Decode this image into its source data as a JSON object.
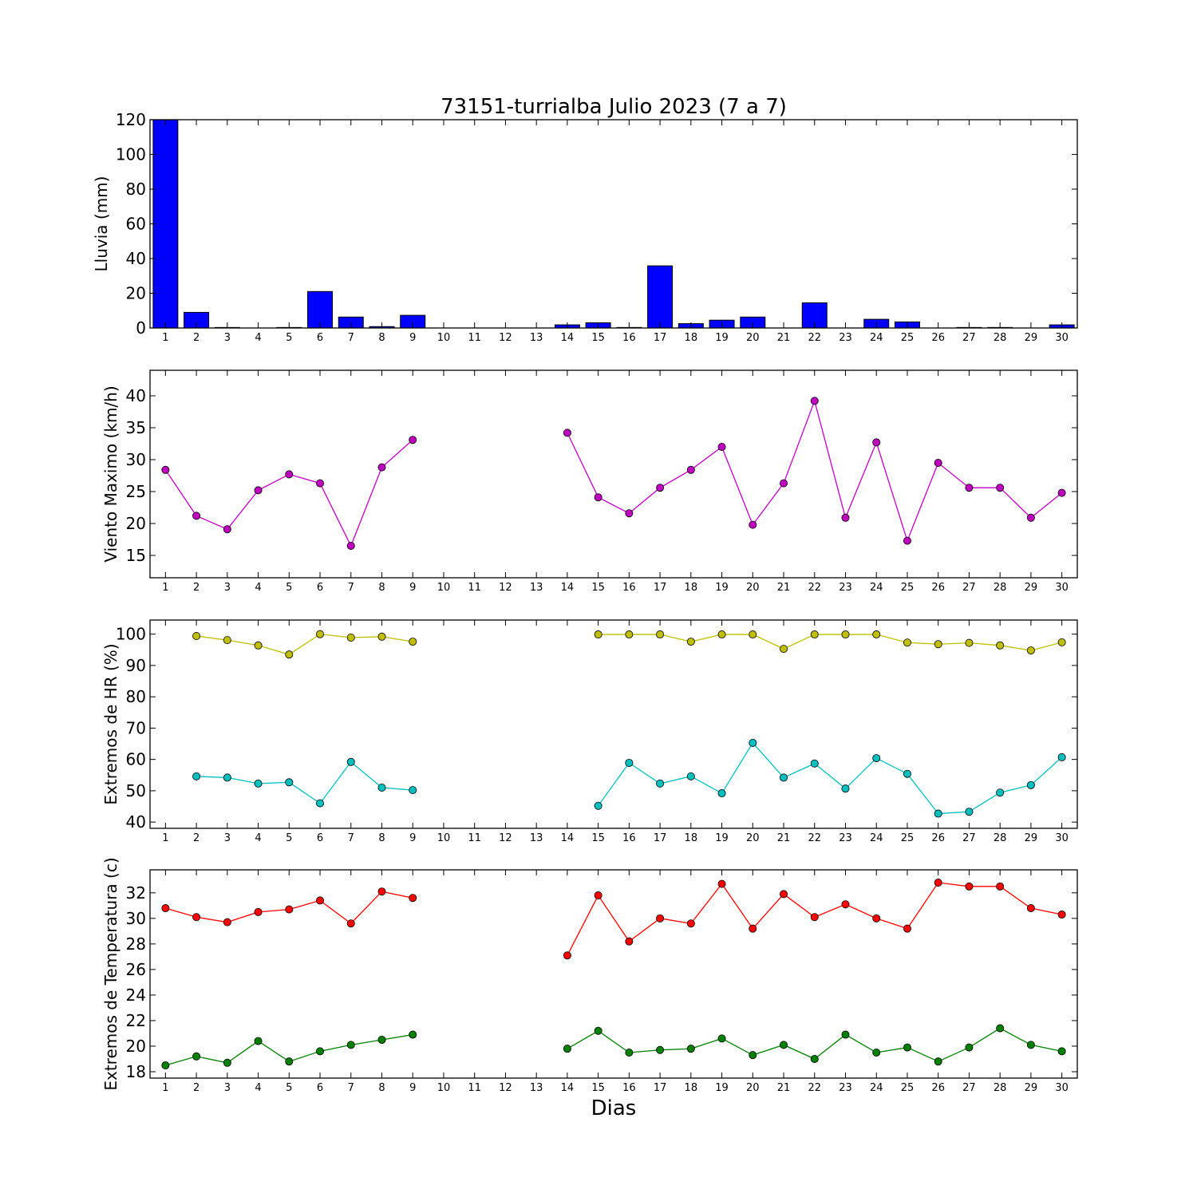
{
  "chart_data": {
    "title": "73151-turrialba Julio 2023  (7 a 7)",
    "xlabel": "Dias",
    "days": [
      1,
      2,
      3,
      4,
      5,
      6,
      7,
      8,
      9,
      10,
      11,
      12,
      13,
      14,
      15,
      16,
      17,
      18,
      19,
      20,
      21,
      22,
      23,
      24,
      25,
      26,
      27,
      28,
      29,
      30
    ],
    "panels": [
      {
        "type": "bar",
        "ylabel": "Lluvia (mm)",
        "ylim": [
          0,
          120
        ],
        "yticks": [
          0,
          20,
          40,
          60,
          80,
          100,
          120
        ],
        "series": [
          {
            "color": "#0000ff",
            "values": [
              120.5,
              9.0,
              0.3,
              0.0,
              0.3,
              21.0,
              6.3,
              0.8,
              7.3,
              0.0,
              0.0,
              0.0,
              0.0,
              1.8,
              3.0,
              0.3,
              35.8,
              2.5,
              4.5,
              6.3,
              0.0,
              14.5,
              0.0,
              5.0,
              3.5,
              0.0,
              0.3,
              0.3,
              0.0,
              1.8
            ]
          }
        ]
      },
      {
        "type": "line",
        "ylabel": "Viento Maximo (km/h)",
        "ylim": [
          11.5,
          44
        ],
        "yticks": [
          15,
          20,
          25,
          30,
          35,
          40
        ],
        "series": [
          {
            "color": "#bf00bf",
            "values": [
              28.4,
              21.2,
              19.1,
              25.2,
              27.7,
              26.3,
              16.5,
              28.8,
              33.1,
              null,
              null,
              null,
              null,
              34.2,
              24.1,
              21.6,
              25.6,
              28.4,
              32.0,
              19.8,
              26.3,
              39.2,
              20.9,
              32.7,
              17.3,
              29.5,
              25.6,
              25.6,
              20.9,
              24.8
            ]
          }
        ]
      },
      {
        "type": "line",
        "ylabel": "Extremos de HR (%)",
        "ylim": [
          38,
          104.5
        ],
        "yticks": [
          40,
          50,
          60,
          70,
          80,
          90,
          100
        ],
        "series": [
          {
            "color": "#bfbf00",
            "values": [
              null,
              99.4,
              98.1,
              96.4,
              93.5,
              100.0,
              98.9,
              99.2,
              97.6,
              null,
              null,
              null,
              null,
              null,
              99.9,
              99.9,
              99.9,
              97.6,
              99.9,
              99.9,
              95.3,
              99.9,
              99.9,
              99.9,
              97.3,
              96.8,
              97.2,
              96.4,
              94.8,
              97.4
            ]
          },
          {
            "color": "#00bfbf",
            "values": [
              null,
              54.6,
              54.2,
              52.3,
              52.7,
              46.0,
              59.2,
              51.0,
              50.2,
              null,
              null,
              null,
              null,
              null,
              45.2,
              58.9,
              52.3,
              54.6,
              49.2,
              65.3,
              54.2,
              58.7,
              50.7,
              60.4,
              55.4,
              42.7,
              43.3,
              49.4,
              51.8,
              60.7
            ]
          }
        ]
      },
      {
        "type": "line",
        "ylabel": "Extremos de Temperatura (c)",
        "ylim": [
          17.5,
          33.8
        ],
        "yticks": [
          18,
          20,
          22,
          24,
          26,
          28,
          30,
          32
        ],
        "series": [
          {
            "color": "#ff0000",
            "values": [
              30.8,
              30.1,
              29.7,
              30.5,
              30.7,
              31.4,
              29.6,
              32.1,
              31.6,
              null,
              null,
              null,
              null,
              27.1,
              31.8,
              28.2,
              30.0,
              29.6,
              32.7,
              29.2,
              31.9,
              30.1,
              31.1,
              30.0,
              29.2,
              32.8,
              32.5,
              32.5,
              30.8,
              30.3
            ]
          },
          {
            "color": "#008000",
            "values": [
              18.5,
              19.2,
              18.7,
              20.4,
              18.8,
              19.6,
              20.1,
              20.5,
              20.9,
              null,
              null,
              null,
              null,
              19.8,
              21.2,
              19.5,
              19.7,
              19.8,
              20.6,
              19.3,
              20.1,
              19.0,
              20.9,
              19.5,
              19.9,
              18.8,
              19.9,
              21.4,
              20.1,
              19.6
            ]
          }
        ]
      }
    ]
  }
}
